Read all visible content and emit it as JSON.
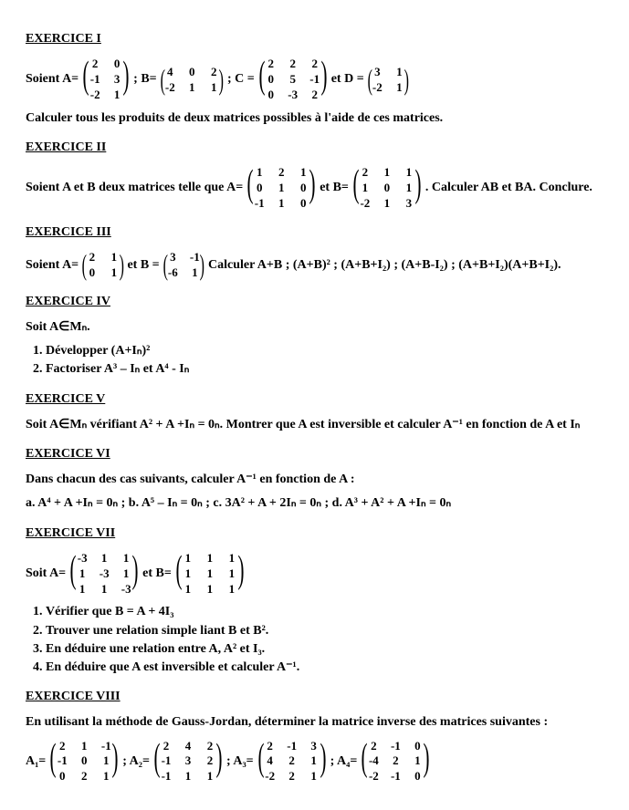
{
  "page": {
    "background_color": "#ffffff",
    "text_color": "#000000",
    "font_family": "Times New Roman",
    "base_fontsize": 14
  },
  "ex1": {
    "title": "EXERCICE I",
    "lead": "Soient A=",
    "A": {
      "rows": [
        [
          "2",
          "0"
        ],
        [
          "-1",
          "3"
        ],
        [
          "-2",
          "1"
        ]
      ]
    },
    "sep1": " ; B=",
    "B": {
      "rows": [
        [
          "4",
          "0",
          "2"
        ],
        [
          "-2",
          "1",
          "1"
        ]
      ]
    },
    "sep2": " ; C = ",
    "C": {
      "rows": [
        [
          "2",
          "2",
          "2"
        ],
        [
          "0",
          "5",
          "-1"
        ],
        [
          "0",
          "-3",
          "2"
        ]
      ]
    },
    "and": " et D = ",
    "D": {
      "rows": [
        [
          "3",
          "1"
        ],
        [
          "-2",
          "1"
        ]
      ]
    },
    "task": "Calculer tous les produits de deux matrices possibles à l'aide de ces matrices."
  },
  "ex2": {
    "title": "EXERCICE II",
    "lead": "Soient A et B deux matrices telle que A=",
    "A": {
      "rows": [
        [
          "1",
          "2",
          "1"
        ],
        [
          "0",
          "1",
          "0"
        ],
        [
          "-1",
          "1",
          "0"
        ]
      ]
    },
    "mid": " et B=",
    "B": {
      "rows": [
        [
          "2",
          "1",
          "1"
        ],
        [
          "1",
          "0",
          "1"
        ],
        [
          "-2",
          "1",
          "3"
        ]
      ]
    },
    "tail": ". Calculer AB et BA. Conclure."
  },
  "ex3": {
    "title": "EXERCICE III",
    "lead": "Soient A=",
    "A": {
      "rows": [
        [
          "2",
          "1"
        ],
        [
          "0",
          "1"
        ]
      ]
    },
    "mid": " et B =",
    "B": {
      "rows": [
        [
          "3",
          "-1"
        ],
        [
          "-6",
          "1"
        ]
      ]
    },
    "tail": " Calculer A+B ; (A+B)² ; (A+B+I₂) ; (A+B-I₂) ; (A+B+I₂)(A+B+I₂)."
  },
  "ex4": {
    "title": "EXERCICE IV",
    "soit": "Soit A∈Mₙ.",
    "item1": "Développer (A+Iₙ)²",
    "item2": "Factoriser A³ – Iₙ et A⁴ - Iₙ"
  },
  "ex5": {
    "title": "EXERCICE V",
    "text": "Soit A∈Mₙ vérifiant A² + A +Iₙ = 0ₙ. Montrer que A est inversible  et calculer  A⁻¹ en fonction de A et Iₙ"
  },
  "ex6": {
    "title": "EXERCICE VI",
    "lead": "Dans chacun des cas suivants, calculer A⁻¹ en fonction de A :",
    "cases": "a.   A⁴ + A +Iₙ = 0ₙ ; b.  A⁵ – Iₙ = 0ₙ ; c. 3A² + A + 2Iₙ = 0ₙ ; d. A³ + A² + A +Iₙ = 0ₙ"
  },
  "ex7": {
    "title": "EXERCICE VII",
    "lead": "Soit  A=",
    "A": {
      "rows": [
        [
          "-3",
          "1",
          "1"
        ],
        [
          "1",
          "-3",
          "1"
        ],
        [
          "1",
          "1",
          "-3"
        ]
      ]
    },
    "mid": " et B=",
    "B": {
      "rows": [
        [
          "1",
          "1",
          "1"
        ],
        [
          "1",
          "1",
          "1"
        ],
        [
          "1",
          "1",
          "1"
        ]
      ]
    },
    "item1": "Vérifier que B = A + 4I₃",
    "item2": "Trouver une relation simple liant B et B².",
    "item3": "En déduire une relation entre A, A² et I₃.",
    "item4": "En déduire que A est inversible et calculer A⁻¹."
  },
  "ex8": {
    "title": "EXERCICE VIII",
    "lead": "En utilisant la méthode de Gauss-Jordan, déterminer la matrice inverse des matrices suivantes :",
    "l1": "A₁= ",
    "A1": {
      "rows": [
        [
          "2",
          "1",
          "-1"
        ],
        [
          "-1",
          "0",
          "1"
        ],
        [
          "0",
          "2",
          "1"
        ]
      ]
    },
    "s1": " ; A₂=",
    "A2": {
      "rows": [
        [
          "2",
          "4",
          "2"
        ],
        [
          "-1",
          "3",
          "2"
        ],
        [
          "-1",
          "1",
          "1"
        ]
      ]
    },
    "s2": " ; A₃=",
    "A3": {
      "rows": [
        [
          "2",
          "-1",
          "3"
        ],
        [
          "4",
          "2",
          "1"
        ],
        [
          "-2",
          "2",
          "1"
        ]
      ]
    },
    "s3": " ; A₄=",
    "A4": {
      "rows": [
        [
          "2",
          "-1",
          "0"
        ],
        [
          "-4",
          "2",
          "1"
        ],
        [
          "-2",
          "-1",
          "0"
        ]
      ]
    }
  }
}
